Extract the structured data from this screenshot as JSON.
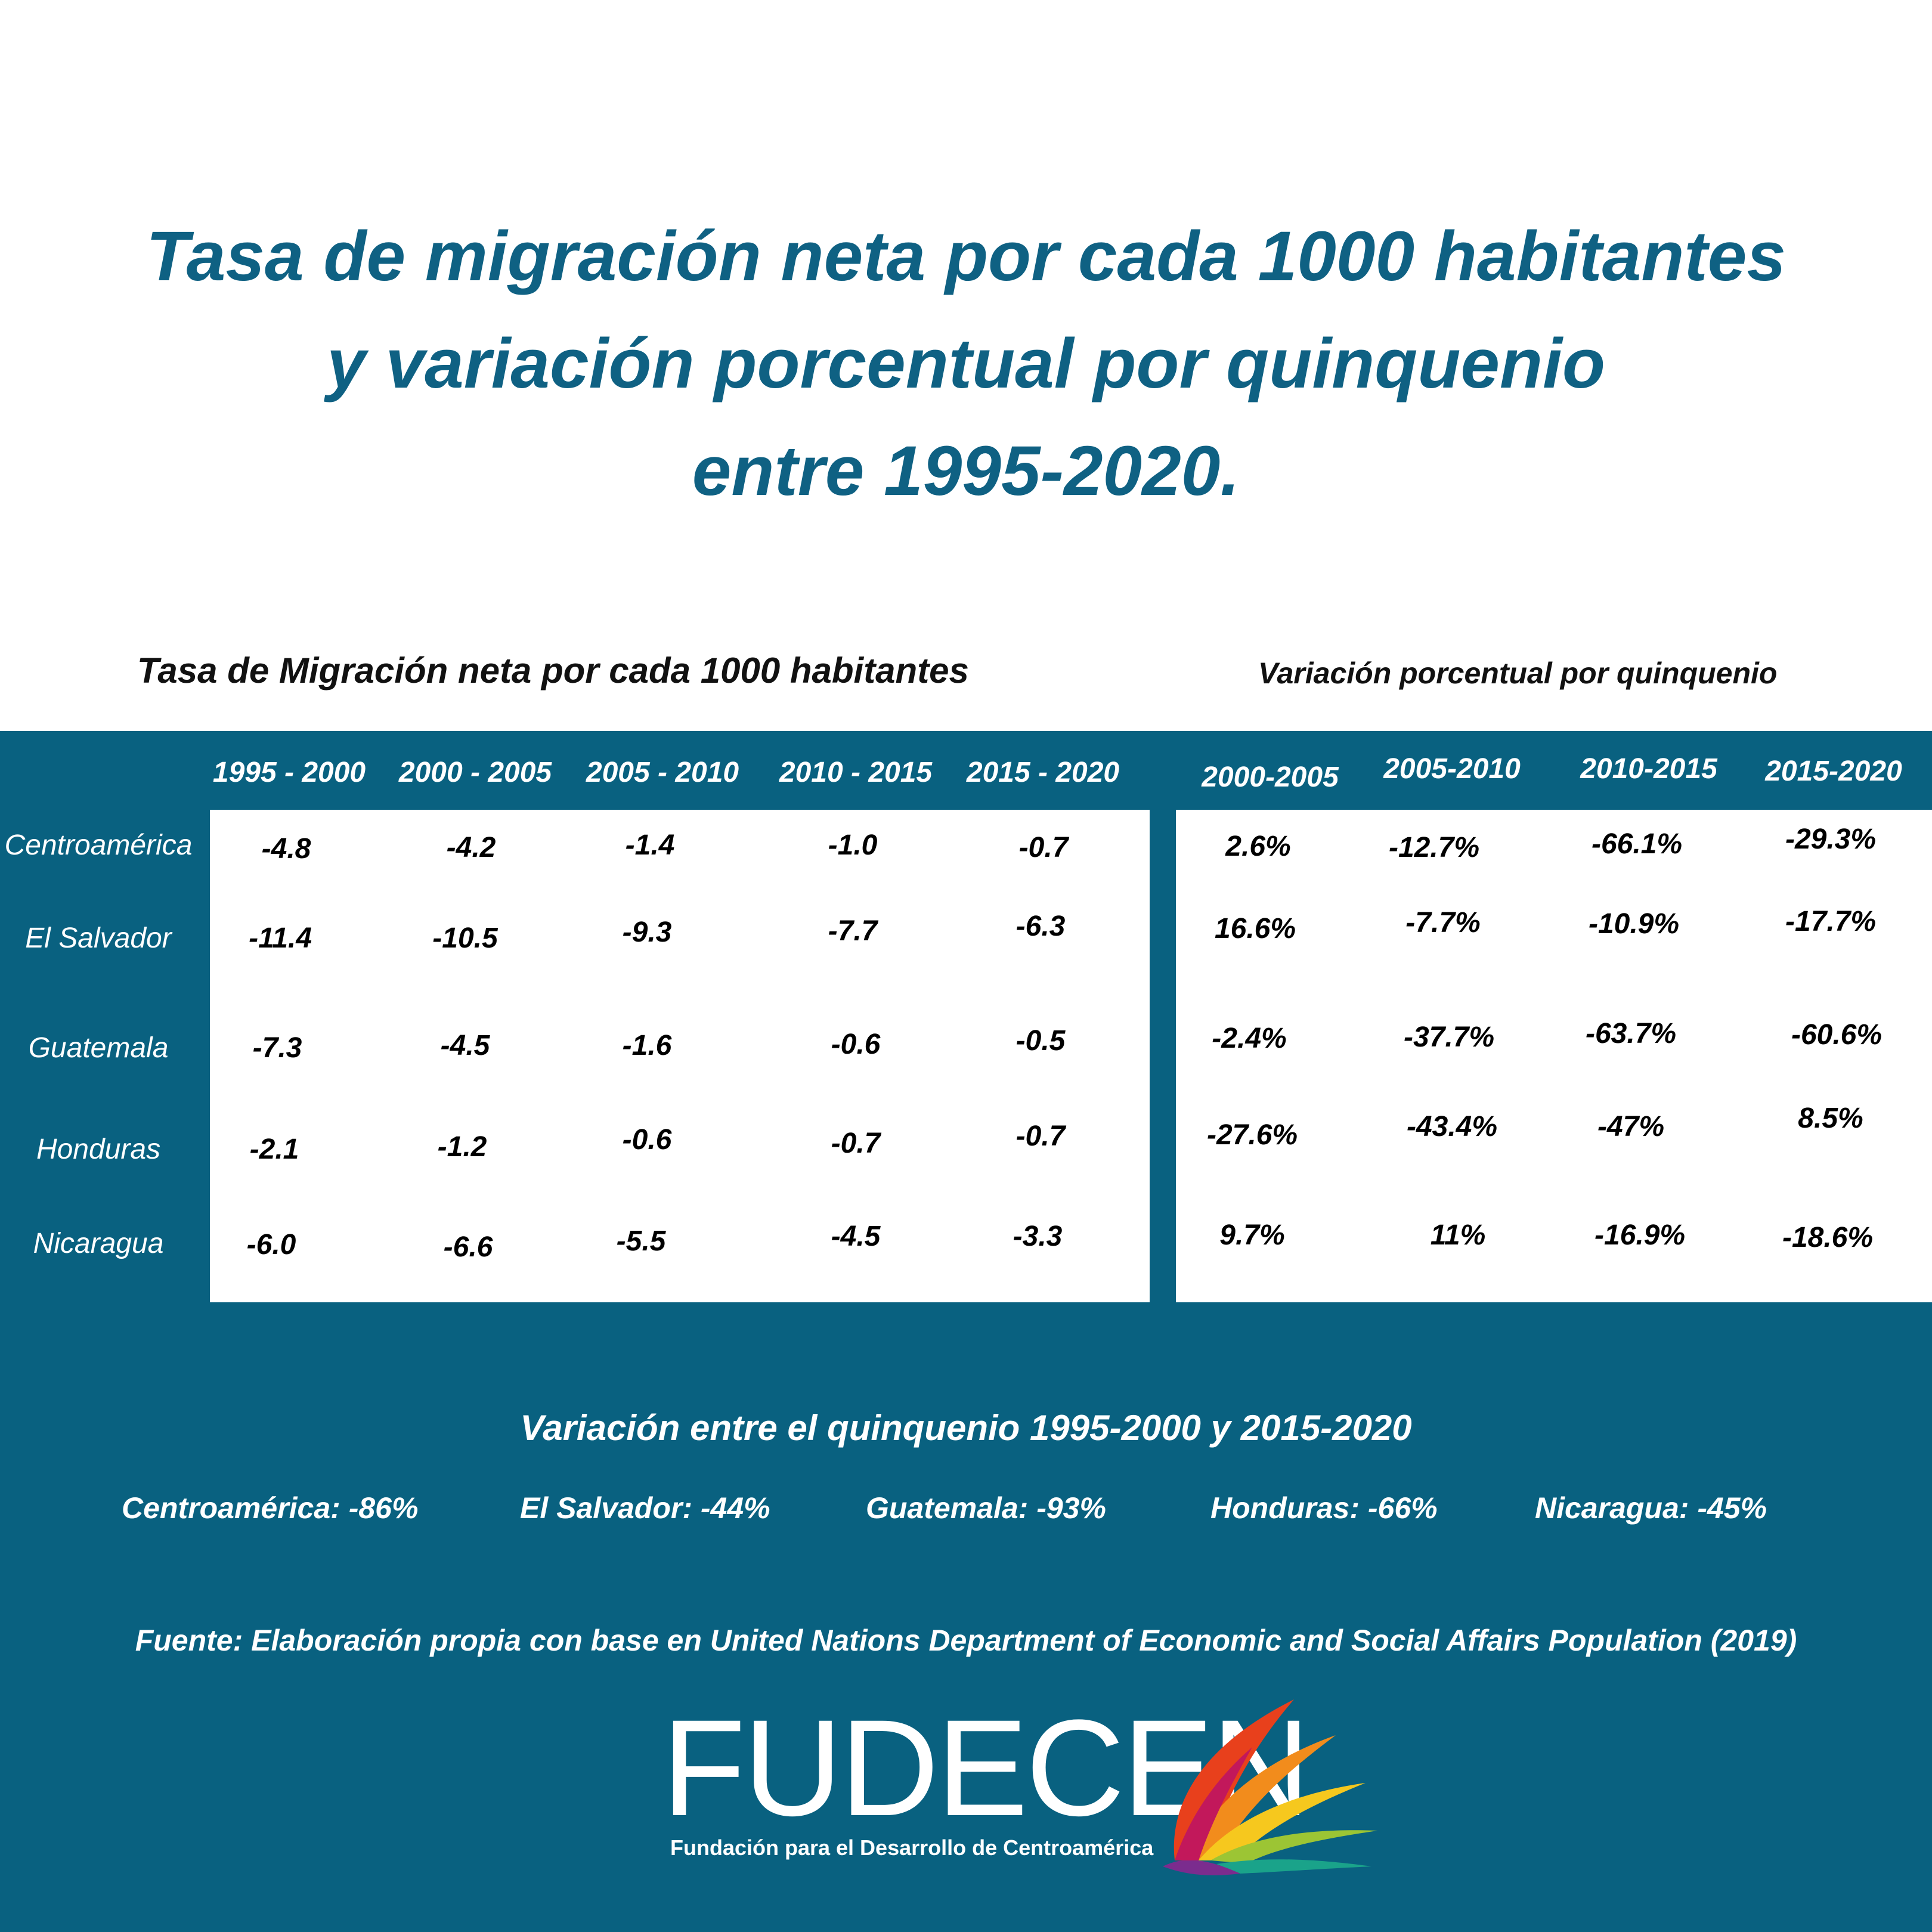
{
  "title": {
    "line1": "Tasa de migración neta por cada 1000 habitantes",
    "line2": "y variación porcentual por quinquenio",
    "line3": "entre 1995-2020."
  },
  "table1": {
    "subtitle": "Tasa de Migración neta por cada 1000 habitantes",
    "columns": [
      "1995 - 2000",
      "2000 - 2005",
      "2005 - 2010",
      "2010 - 2015",
      "2015 - 2020"
    ]
  },
  "table2": {
    "subtitle": "Variación porcentual por quinquenio",
    "columns": [
      "2000-2005",
      "2005-2010",
      "2010-2015",
      "2015-2020"
    ]
  },
  "rows": [
    {
      "label": "Centroamérica",
      "rates": [
        "-4.8",
        "-4.2",
        "-1.4",
        "-1.0",
        "-0.7"
      ],
      "variation": [
        "2.6%",
        "-12.7%",
        "-66.1%",
        "-29.3%"
      ]
    },
    {
      "label": "El Salvador",
      "rates": [
        "-11.4",
        "-10.5",
        "-9.3",
        "-7.7",
        "-6.3"
      ],
      "variation": [
        "16.6%",
        "-7.7%",
        "-10.9%",
        "-17.7%"
      ]
    },
    {
      "label": "Guatemala",
      "rates": [
        "-7.3",
        "-4.5",
        "-1.6",
        "-0.6",
        "-0.5"
      ],
      "variation": [
        "-2.4%",
        "-37.7%",
        "-63.7%",
        "-60.6%"
      ]
    },
    {
      "label": "Honduras",
      "rates": [
        "-2.1",
        "-1.2",
        "-0.6",
        "-0.7",
        "-0.7"
      ],
      "variation": [
        "-27.6%",
        "-43.4%",
        "-47%",
        "8.5%"
      ]
    },
    {
      "label": "Nicaragua",
      "rates": [
        "-6.0",
        "-6.6",
        "-5.5",
        "-4.5",
        "-3.3"
      ],
      "variation": [
        "9.7%",
        "11%",
        "-16.9%",
        "-18.6%"
      ]
    }
  ],
  "variation_summary": {
    "title": "Variación entre el quinquenio 1995-2000 y 2015-2020",
    "items": [
      "Centroamérica: -86%",
      "El Salvador: -44%",
      "Guatemala: -93%",
      "Honduras: -66%",
      "Nicaragua: -45%"
    ]
  },
  "source": "Fuente: Elaboración propia con base en United Nations Department of Economic and Social Affairs  Population (2019)",
  "logo": {
    "name": "FUDECEN",
    "tagline": "Fundación para el Desarrollo de Centroamérica"
  },
  "colors": {
    "accent": "#096180",
    "title": "#0f6183"
  }
}
